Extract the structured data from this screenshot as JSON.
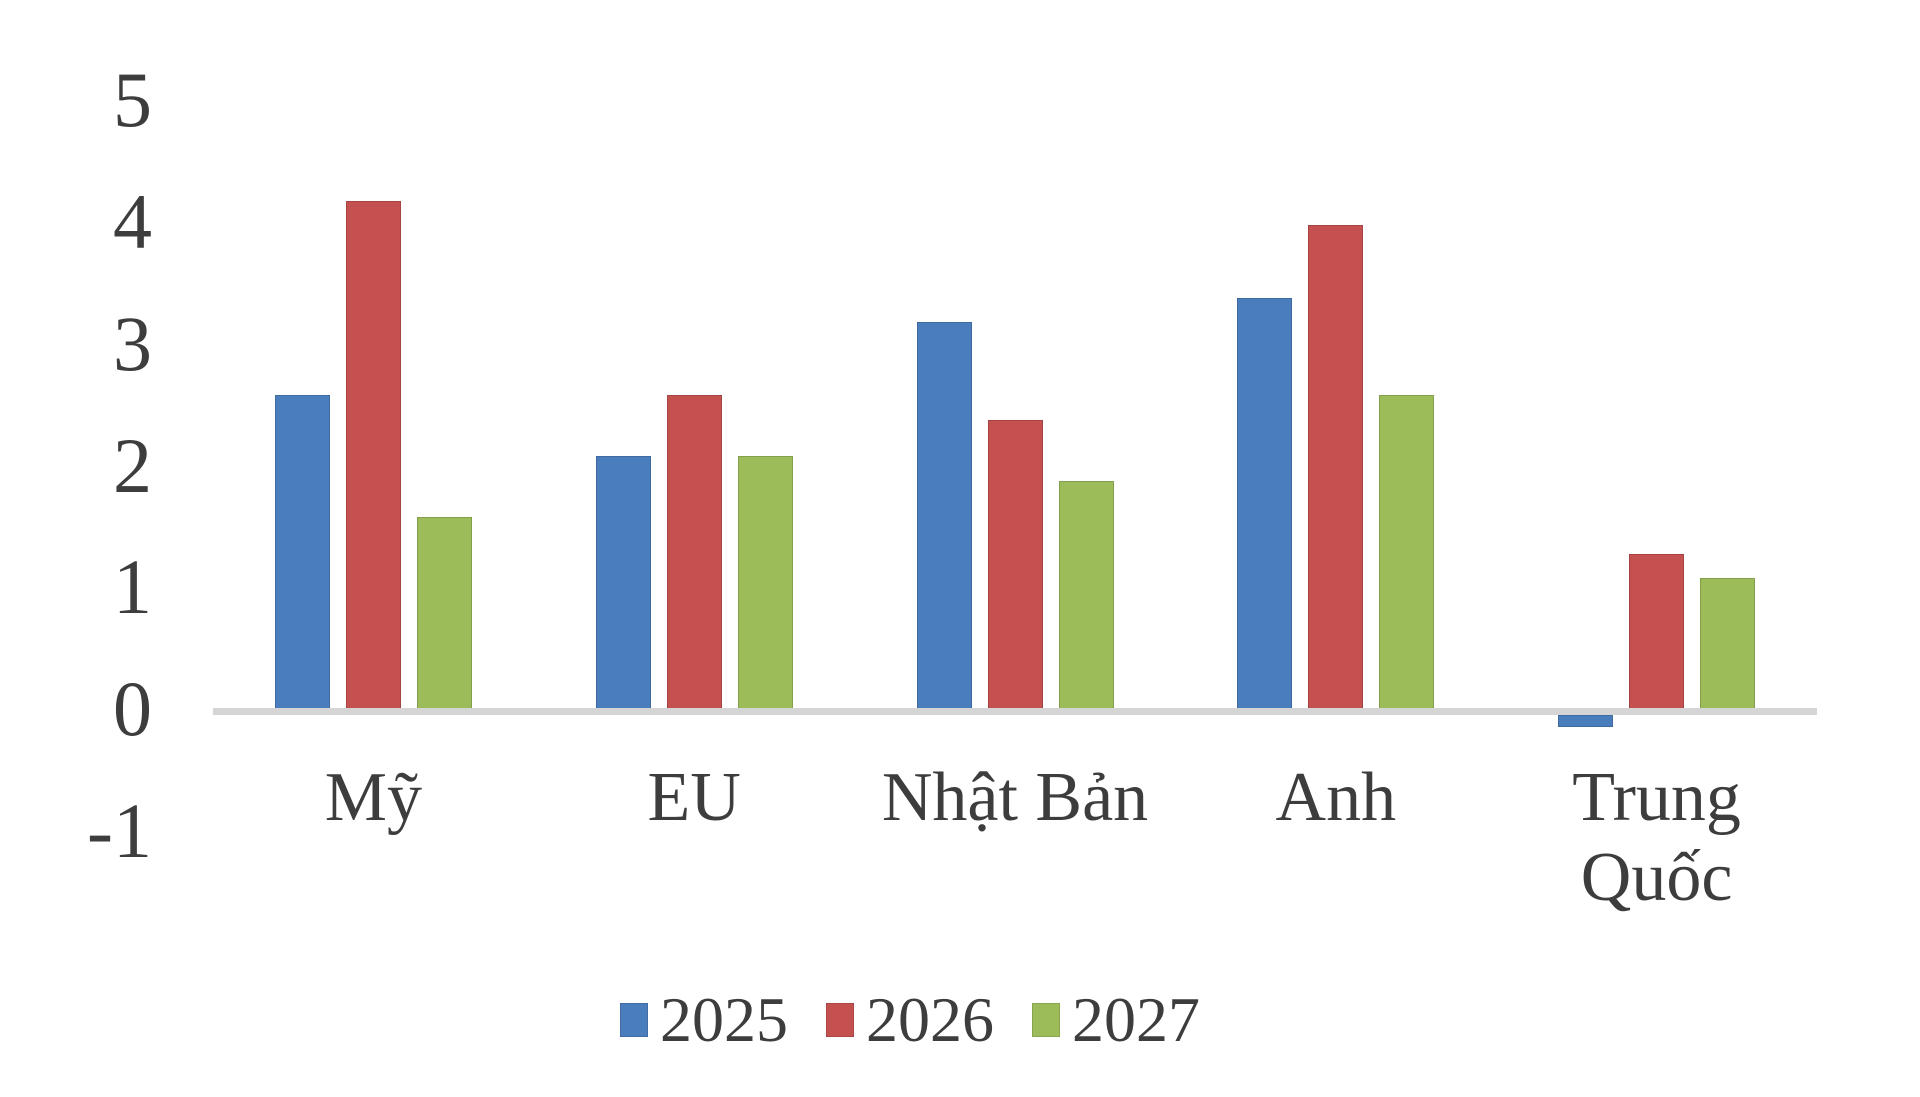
{
  "chart_data": {
    "type": "bar",
    "title": "",
    "xlabel": "",
    "ylabel": "",
    "categories": [
      "Mỹ",
      "EU",
      "Nhật Bản",
      "Anh",
      "Trung Quốc"
    ],
    "series": [
      {
        "name": "2025",
        "color": "#4A7DBB",
        "values": [
          2.6,
          2.1,
          3.2,
          3.4,
          -0.1
        ]
      },
      {
        "name": "2026",
        "color": "#C4514F",
        "values": [
          4.2,
          2.6,
          2.4,
          4.0,
          1.3
        ]
      },
      {
        "name": "2027",
        "color": "#9CBB59",
        "values": [
          1.6,
          2.1,
          1.9,
          2.6,
          1.1
        ]
      }
    ],
    "ylim": [
      -1,
      5
    ],
    "yticks": [
      5,
      4,
      3,
      2,
      1,
      0,
      -1
    ],
    "grid": false,
    "legend_position": "bottom"
  },
  "colors": {
    "axis_line": "#D5D5D5",
    "text": "#3D3D3D",
    "background": "#FFFFFF"
  }
}
